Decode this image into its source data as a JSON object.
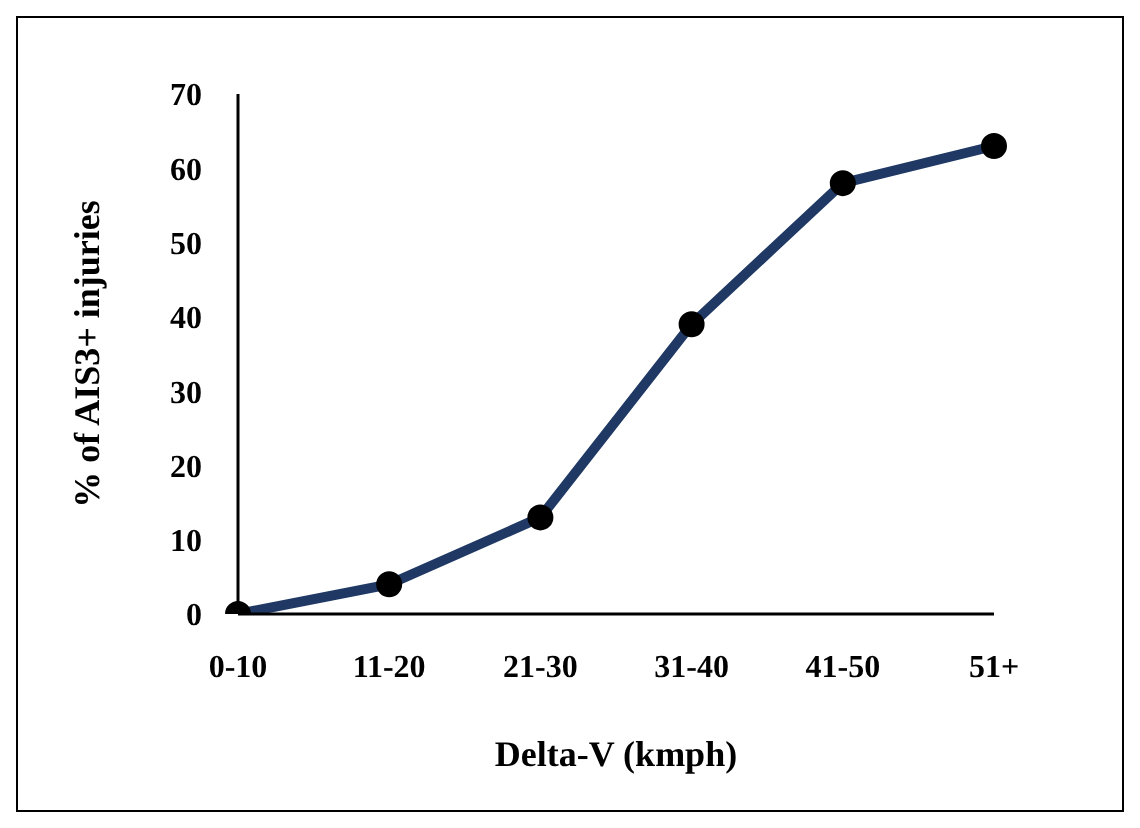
{
  "chart_data": {
    "type": "line",
    "xlabel": "Delta-V (kmph)",
    "ylabel": "% of AIS3+ injuries",
    "categories": [
      "0-10",
      "11-20",
      "21-30",
      "31-40",
      "41-50",
      "51+"
    ],
    "series": [
      {
        "color": "#1f3864",
        "values": [
          0,
          4,
          13,
          39,
          58,
          63
        ]
      }
    ],
    "ylim": [
      0,
      70
    ],
    "yticks": [
      0,
      10,
      20,
      30,
      40,
      50,
      60,
      70
    ],
    "grid": false,
    "legend": false,
    "marker": "circle",
    "line_style": "solid"
  }
}
